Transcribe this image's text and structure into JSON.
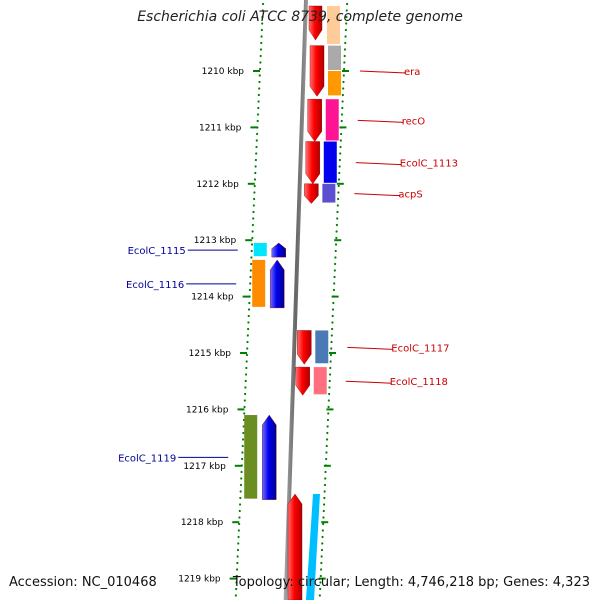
{
  "title": "Escherichia coli ATCC 8739, complete genome",
  "footer": {
    "accession": "Accession: NC_010468",
    "topology": "Topology: circular; Length: 4,746,218 bp; Genes: 4,323"
  },
  "scale": {
    "unit": "kbp",
    "ticks": [
      {
        "label": "1210 kbp",
        "value": 1210
      },
      {
        "label": "1211 kbp",
        "value": 1211
      },
      {
        "label": "1212 kbp",
        "value": 1212
      },
      {
        "label": "1213 kbp",
        "value": 1213
      },
      {
        "label": "1214 kbp",
        "value": 1214
      },
      {
        "label": "1215 kbp",
        "value": 1215
      },
      {
        "label": "1216 kbp",
        "value": 1216
      },
      {
        "label": "1217 kbp",
        "value": 1217
      },
      {
        "label": "1218 kbp",
        "value": 1218
      },
      {
        "label": "1219 kbp",
        "value": 1219
      }
    ]
  },
  "genes": [
    {
      "name": "era",
      "strand": "forward",
      "start_kbp": 1209.55,
      "end_kbp": 1210.45,
      "color": "#ff0000",
      "label_color": "#cc0000"
    },
    {
      "name": "recO",
      "strand": "forward",
      "start_kbp": 1210.5,
      "end_kbp": 1211.25,
      "color": "#ff0000",
      "label_color": "#cc0000"
    },
    {
      "name": "EcolC_1113",
      "strand": "forward",
      "start_kbp": 1211.25,
      "end_kbp": 1212.0,
      "color": "#ff0000",
      "label_color": "#cc0000"
    },
    {
      "name": "acpS",
      "strand": "forward",
      "start_kbp": 1212.0,
      "end_kbp": 1212.35,
      "color": "#ff0000",
      "label_color": "#cc0000"
    },
    {
      "name": "EcolC_1115",
      "strand": "reverse",
      "start_kbp": 1213.05,
      "end_kbp": 1213.3,
      "color": "#0000ee",
      "label_color": "#000099"
    },
    {
      "name": "EcolC_1116",
      "strand": "reverse",
      "start_kbp": 1213.35,
      "end_kbp": 1214.2,
      "color": "#0000ee",
      "label_color": "#000099"
    },
    {
      "name": "EcolC_1117",
      "strand": "forward",
      "start_kbp": 1214.6,
      "end_kbp": 1215.2,
      "color": "#ff0000",
      "label_color": "#cc0000"
    },
    {
      "name": "EcolC_1118",
      "strand": "forward",
      "start_kbp": 1215.25,
      "end_kbp": 1215.75,
      "color": "#ff0000",
      "label_color": "#cc0000"
    },
    {
      "name": "EcolC_1119",
      "strand": "reverse",
      "start_kbp": 1216.1,
      "end_kbp": 1217.6,
      "color": "#0000ee",
      "label_color": "#000099"
    }
  ],
  "colors": {
    "backbone": "#777777",
    "tick_dots": "#008000",
    "forward_gene": "#ff0000",
    "reverse_gene": "#0000ee"
  }
}
